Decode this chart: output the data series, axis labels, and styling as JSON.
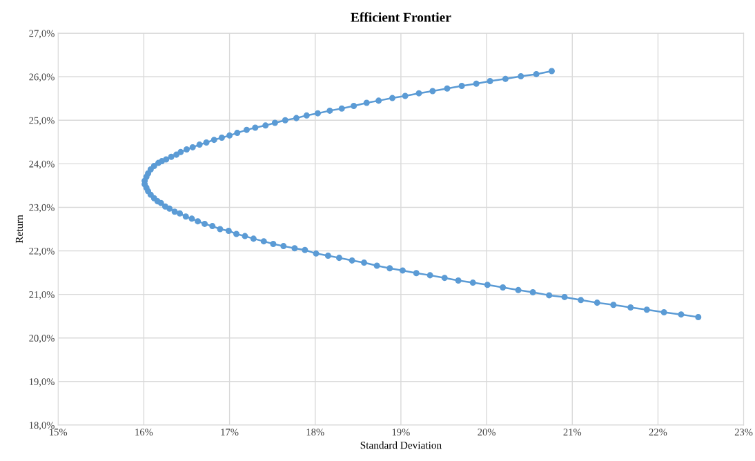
{
  "chart_data": {
    "type": "line",
    "title": "Efficient Frontier",
    "xlabel": "Standard Deviation",
    "ylabel": "Return",
    "x": [
      20.76,
      20.58,
      20.4,
      20.22,
      20.04,
      19.88,
      19.71,
      19.54,
      19.37,
      19.21,
      19.05,
      18.9,
      18.74,
      18.6,
      18.45,
      18.31,
      18.17,
      18.03,
      17.9,
      17.78,
      17.65,
      17.53,
      17.42,
      17.3,
      17.2,
      17.09,
      17.0,
      16.91,
      16.82,
      16.73,
      16.65,
      16.57,
      16.5,
      16.43,
      16.38,
      16.32,
      16.26,
      16.21,
      16.17,
      16.12,
      16.08,
      16.05,
      16.03,
      16.01,
      16.01,
      16.03,
      16.05,
      16.08,
      16.12,
      16.16,
      16.2,
      16.25,
      16.3,
      16.36,
      16.42,
      16.49,
      16.56,
      16.63,
      16.71,
      16.8,
      16.89,
      16.99,
      17.08,
      17.18,
      17.28,
      17.4,
      17.51,
      17.63,
      17.76,
      17.88,
      18.01,
      18.15,
      18.28,
      18.43,
      18.57,
      18.72,
      18.87,
      19.02,
      19.18,
      19.34,
      19.51,
      19.67,
      19.84,
      20.01,
      20.19,
      20.37,
      20.54,
      20.73,
      20.91,
      21.1,
      21.29,
      21.48,
      21.68,
      21.87,
      22.07,
      22.27,
      22.47
    ],
    "series": [
      {
        "color": "#5b9bd5",
        "values": [
          26.13,
          26.06,
          26.01,
          25.95,
          25.9,
          25.84,
          25.79,
          25.73,
          25.67,
          25.62,
          25.56,
          25.51,
          25.45,
          25.4,
          25.33,
          25.27,
          25.22,
          25.16,
          25.11,
          25.05,
          25.0,
          24.94,
          24.88,
          24.83,
          24.78,
          24.71,
          24.65,
          24.6,
          24.55,
          24.49,
          24.44,
          24.38,
          24.33,
          24.27,
          24.21,
          24.16,
          24.1,
          24.06,
          24.02,
          23.95,
          23.87,
          23.78,
          23.7,
          23.61,
          23.53,
          23.45,
          23.37,
          23.29,
          23.21,
          23.14,
          23.1,
          23.02,
          22.97,
          22.9,
          22.86,
          22.79,
          22.74,
          22.68,
          22.62,
          22.57,
          22.5,
          22.46,
          22.39,
          22.34,
          22.28,
          22.22,
          22.16,
          22.11,
          22.06,
          22.02,
          21.94,
          21.89,
          21.84,
          21.78,
          21.73,
          21.66,
          21.6,
          21.55,
          21.49,
          21.44,
          21.38,
          21.32,
          21.27,
          21.22,
          21.16,
          21.1,
          21.05,
          20.98,
          20.94,
          20.87,
          20.81,
          20.76,
          20.7,
          20.65,
          20.59,
          20.54,
          20.48
        ]
      }
    ],
    "xlim": [
      15,
      23
    ],
    "xticks": [
      {
        "value": 15,
        "label": "15%"
      },
      {
        "value": 16,
        "label": "16%"
      },
      {
        "value": 17,
        "label": "17%"
      },
      {
        "value": 18,
        "label": "18%"
      },
      {
        "value": 19,
        "label": "19%"
      },
      {
        "value": 20,
        "label": "20%"
      },
      {
        "value": 21,
        "label": "21%"
      },
      {
        "value": 22,
        "label": "22%"
      },
      {
        "value": 23,
        "label": "23%"
      }
    ],
    "ylim": [
      18,
      27
    ],
    "yticks": [
      {
        "value": 18,
        "label": "18,0%"
      },
      {
        "value": 19,
        "label": "19,0%"
      },
      {
        "value": 20,
        "label": "20,0%"
      },
      {
        "value": 21,
        "label": "21,0%"
      },
      {
        "value": 22,
        "label": "22,0%"
      },
      {
        "value": 23,
        "label": "23,0%"
      },
      {
        "value": 24,
        "label": "24,0%"
      },
      {
        "value": 25,
        "label": "25,0%"
      },
      {
        "value": 26,
        "label": "26,0%"
      },
      {
        "value": 27,
        "label": "27,0%"
      }
    ],
    "grid": true,
    "marker": "circle",
    "line_style": "solid"
  }
}
